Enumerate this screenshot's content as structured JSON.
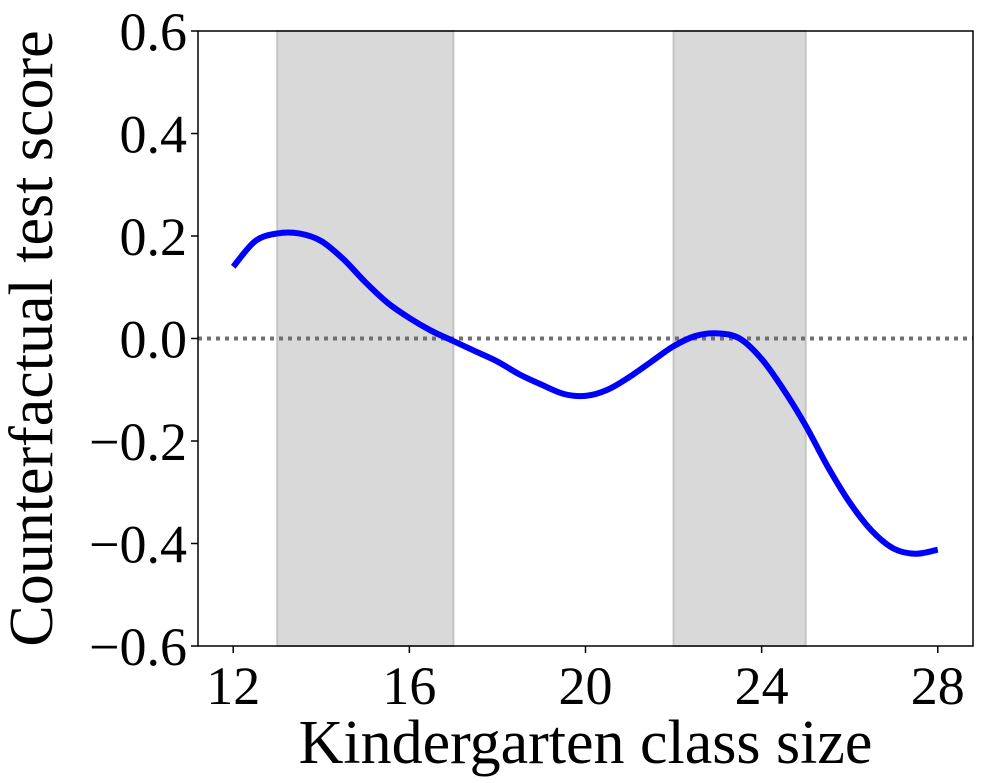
{
  "chart_data": {
    "type": "line",
    "xlabel": "Kindergarten class size",
    "ylabel": "Counterfactual test score",
    "xlim": [
      11.2,
      28.8
    ],
    "ylim": [
      -0.6,
      0.6
    ],
    "xticks": [
      12,
      16,
      20,
      24,
      28
    ],
    "yticks": [
      -0.6,
      -0.4,
      -0.2,
      0.0,
      0.2,
      0.4,
      0.6
    ],
    "xtick_labels": [
      "12",
      "16",
      "20",
      "24",
      "28"
    ],
    "ytick_labels": [
      "−0.6",
      "−0.4",
      "−0.2",
      "0.0",
      "0.2",
      "0.4",
      "0.6"
    ],
    "grid": false,
    "shaded_regions": [
      {
        "x_start": 13,
        "x_end": 17,
        "color": "#d9d9d9"
      },
      {
        "x_start": 22,
        "x_end": 25,
        "color": "#d9d9d9"
      }
    ],
    "reference_line": {
      "y": 0.0,
      "style": "dotted",
      "color": "#707070"
    },
    "series": [
      {
        "color": "#0000ff",
        "x": [
          12,
          12.5,
          13,
          13.5,
          14,
          14.5,
          15,
          15.5,
          16,
          16.5,
          17,
          17.5,
          18,
          18.5,
          19,
          19.5,
          20,
          20.5,
          21,
          21.5,
          22,
          22.5,
          23,
          23.5,
          24,
          24.5,
          25,
          25.5,
          26,
          26.5,
          27,
          27.5,
          28
        ],
        "y": [
          0.14,
          0.19,
          0.205,
          0.205,
          0.19,
          0.155,
          0.11,
          0.07,
          0.04,
          0.015,
          -0.005,
          -0.025,
          -0.045,
          -0.07,
          -0.09,
          -0.108,
          -0.112,
          -0.1,
          -0.075,
          -0.045,
          -0.015,
          0.005,
          0.01,
          0.0,
          -0.04,
          -0.1,
          -0.17,
          -0.25,
          -0.32,
          -0.375,
          -0.41,
          -0.42,
          -0.412
        ]
      }
    ]
  }
}
